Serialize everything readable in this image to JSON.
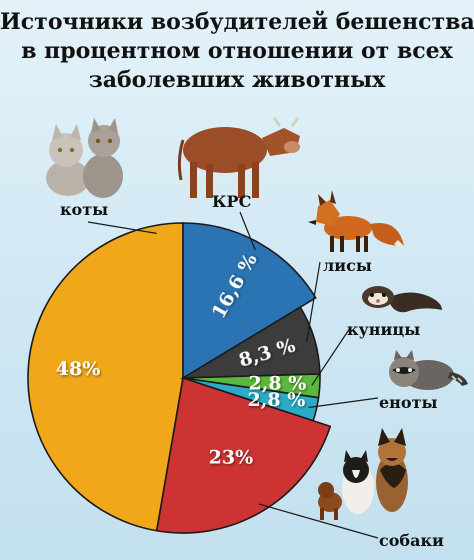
{
  "title": {
    "lines": [
      "Источники возбудителей бешенства",
      "в процентном отношении от всех",
      "заболевших животных"
    ]
  },
  "chart_data": {
    "type": "pie",
    "categories": [
      "коты",
      "КРС",
      "лисы",
      "куницы",
      "еноты",
      "собаки"
    ],
    "values": [
      48,
      16.6,
      8.3,
      2.8,
      2.8,
      23
    ],
    "value_labels": [
      "48%",
      "16,6 %",
      "8,3 %",
      "2,8 %",
      "2,8 %",
      "23%"
    ],
    "colors": [
      "#f0a81a",
      "#2b74b3",
      "#3c3c3c",
      "#5cb83c",
      "#2cabc7",
      "#cd3333"
    ],
    "icons": [
      "cat-icon",
      "cow-icon",
      "fox-icon",
      "ferret-icon",
      "raccoon-icon",
      "dog-icon"
    ]
  }
}
